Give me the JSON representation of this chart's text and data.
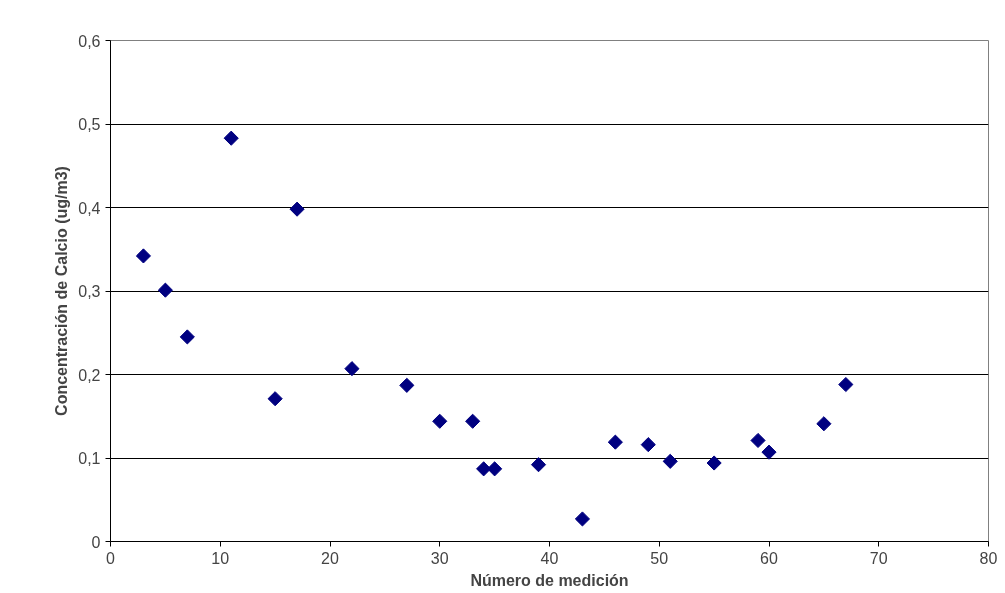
{
  "chart_data": {
    "type": "scatter",
    "xlabel": "Número de medición",
    "ylabel": "Concentración de Calcio (ug/m3)",
    "x": [
      3,
      5,
      7,
      11,
      15,
      17,
      22,
      27,
      30,
      33,
      34,
      35,
      39,
      43,
      46,
      49,
      51,
      55,
      59,
      60,
      65,
      67
    ],
    "series": [
      {
        "color": "#000080",
        "values": [
          0.342,
          0.301,
          0.245,
          0.483,
          0.171,
          0.398,
          0.207,
          0.187,
          0.144,
          0.144,
          0.087,
          0.087,
          0.092,
          0.027,
          0.119,
          0.116,
          0.096,
          0.094,
          0.121,
          0.107,
          0.141,
          0.188
        ]
      }
    ],
    "xlim": [
      0,
      80
    ],
    "xticks": [
      0,
      10,
      20,
      30,
      40,
      50,
      60,
      70,
      80
    ],
    "ylim": [
      0,
      0.6
    ],
    "yticks": [
      {
        "value": 0,
        "label": "0"
      },
      {
        "value": 0.1,
        "label": "0,1"
      },
      {
        "value": 0.2,
        "label": "0,2"
      },
      {
        "value": 0.3,
        "label": "0,3"
      },
      {
        "value": 0.4,
        "label": "0,4"
      },
      {
        "value": 0.5,
        "label": "0,5"
      },
      {
        "value": 0.6,
        "label": "0,6"
      }
    ],
    "grid": "y",
    "marker": "diamond"
  }
}
